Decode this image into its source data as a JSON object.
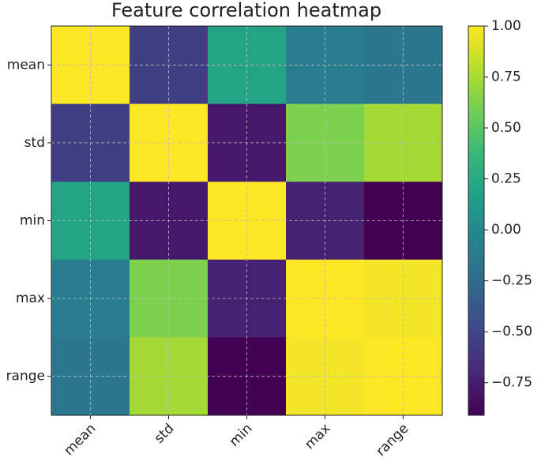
{
  "chart_data": {
    "type": "heatmap",
    "title": "Feature correlation heatmap",
    "categories": [
      "mean",
      "std",
      "min",
      "max",
      "range"
    ],
    "values": [
      [
        1.0,
        -0.55,
        0.2,
        -0.1,
        -0.15
      ],
      [
        -0.55,
        1.0,
        -0.78,
        0.62,
        0.74
      ],
      [
        0.2,
        -0.78,
        1.0,
        -0.73,
        -0.91
      ],
      [
        -0.1,
        0.62,
        -0.73,
        1.0,
        0.97
      ],
      [
        -0.15,
        0.74,
        -0.91,
        0.97,
        1.0
      ]
    ],
    "clim": [
      -0.91,
      1.0
    ],
    "cticks": [
      {
        "value": 1.0,
        "label": "1.00"
      },
      {
        "value": 0.75,
        "label": "0.75"
      },
      {
        "value": 0.5,
        "label": "0.50"
      },
      {
        "value": 0.25,
        "label": "0.25"
      },
      {
        "value": 0.0,
        "label": "0.00"
      },
      {
        "value": -0.25,
        "label": "−0.25"
      },
      {
        "value": -0.5,
        "label": "−0.50"
      },
      {
        "value": -0.75,
        "label": "−0.75"
      }
    ],
    "colormap": [
      "#440154",
      "#482878",
      "#3e4989",
      "#31688e",
      "#26828e",
      "#1f9e89",
      "#35b779",
      "#6ece58",
      "#b5de2b",
      "#fde725"
    ],
    "grid": true
  }
}
